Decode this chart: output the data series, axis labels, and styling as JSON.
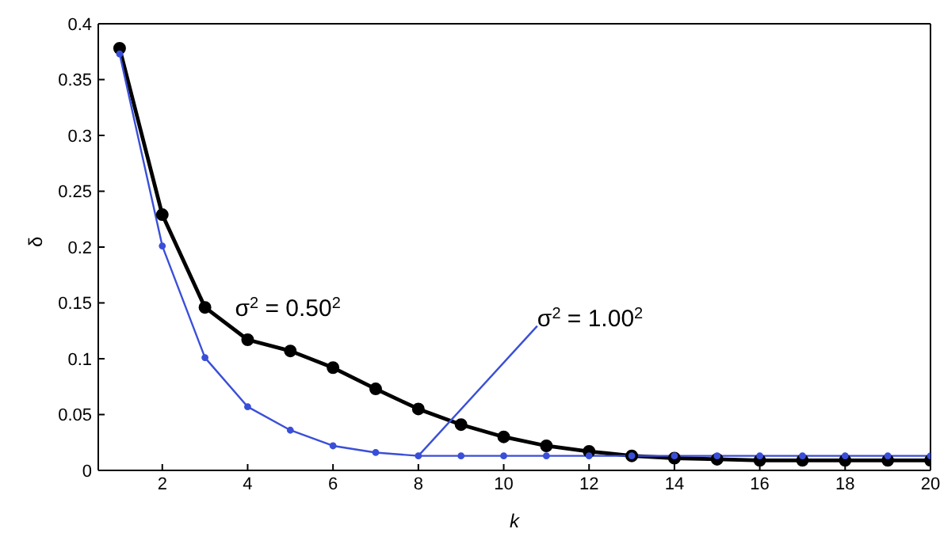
{
  "chart_data": {
    "type": "line",
    "xlabel": "k",
    "ylabel": "δ",
    "x": [
      1,
      2,
      3,
      4,
      5,
      6,
      7,
      8,
      9,
      10,
      11,
      12,
      13,
      14,
      15,
      16,
      17,
      18,
      19,
      20
    ],
    "series": [
      {
        "color": "#000000",
        "values": [
          0.378,
          0.229,
          0.146,
          0.117,
          0.107,
          0.092,
          0.073,
          0.055,
          0.041,
          0.03,
          0.022,
          0.017,
          0.013,
          0.011,
          0.01,
          0.009,
          0.009,
          0.009,
          0.009,
          0.009
        ]
      },
      {
        "color": "#3a4fd8",
        "values": [
          0.373,
          0.201,
          0.101,
          0.057,
          0.036,
          0.022,
          0.016,
          0.013,
          0.013,
          0.013,
          0.013,
          0.013,
          0.013,
          0.013,
          0.013,
          0.013,
          0.013,
          0.013,
          0.013,
          0.013
        ]
      }
    ],
    "annotations": [
      {
        "text": "σ$^{2}$ = 0.50$^{2}$",
        "x": 4,
        "y": 0.117
      },
      {
        "text": "σ$^{2}$ = 1.00$^{2}$",
        "x": 8,
        "y": 0.013
      }
    ],
    "xlim": [
      0.5,
      20
    ],
    "xticks": [
      2,
      4,
      6,
      8,
      10,
      12,
      14,
      16,
      18,
      20
    ],
    "ylim": [
      0,
      0.4
    ],
    "yticks": [
      0,
      0.05,
      0.1,
      0.15,
      0.2,
      0.25,
      0.3,
      0.35,
      0.4
    ],
    "grid": false,
    "legend": false,
    "marker": "circle",
    "line_style": "solid"
  }
}
